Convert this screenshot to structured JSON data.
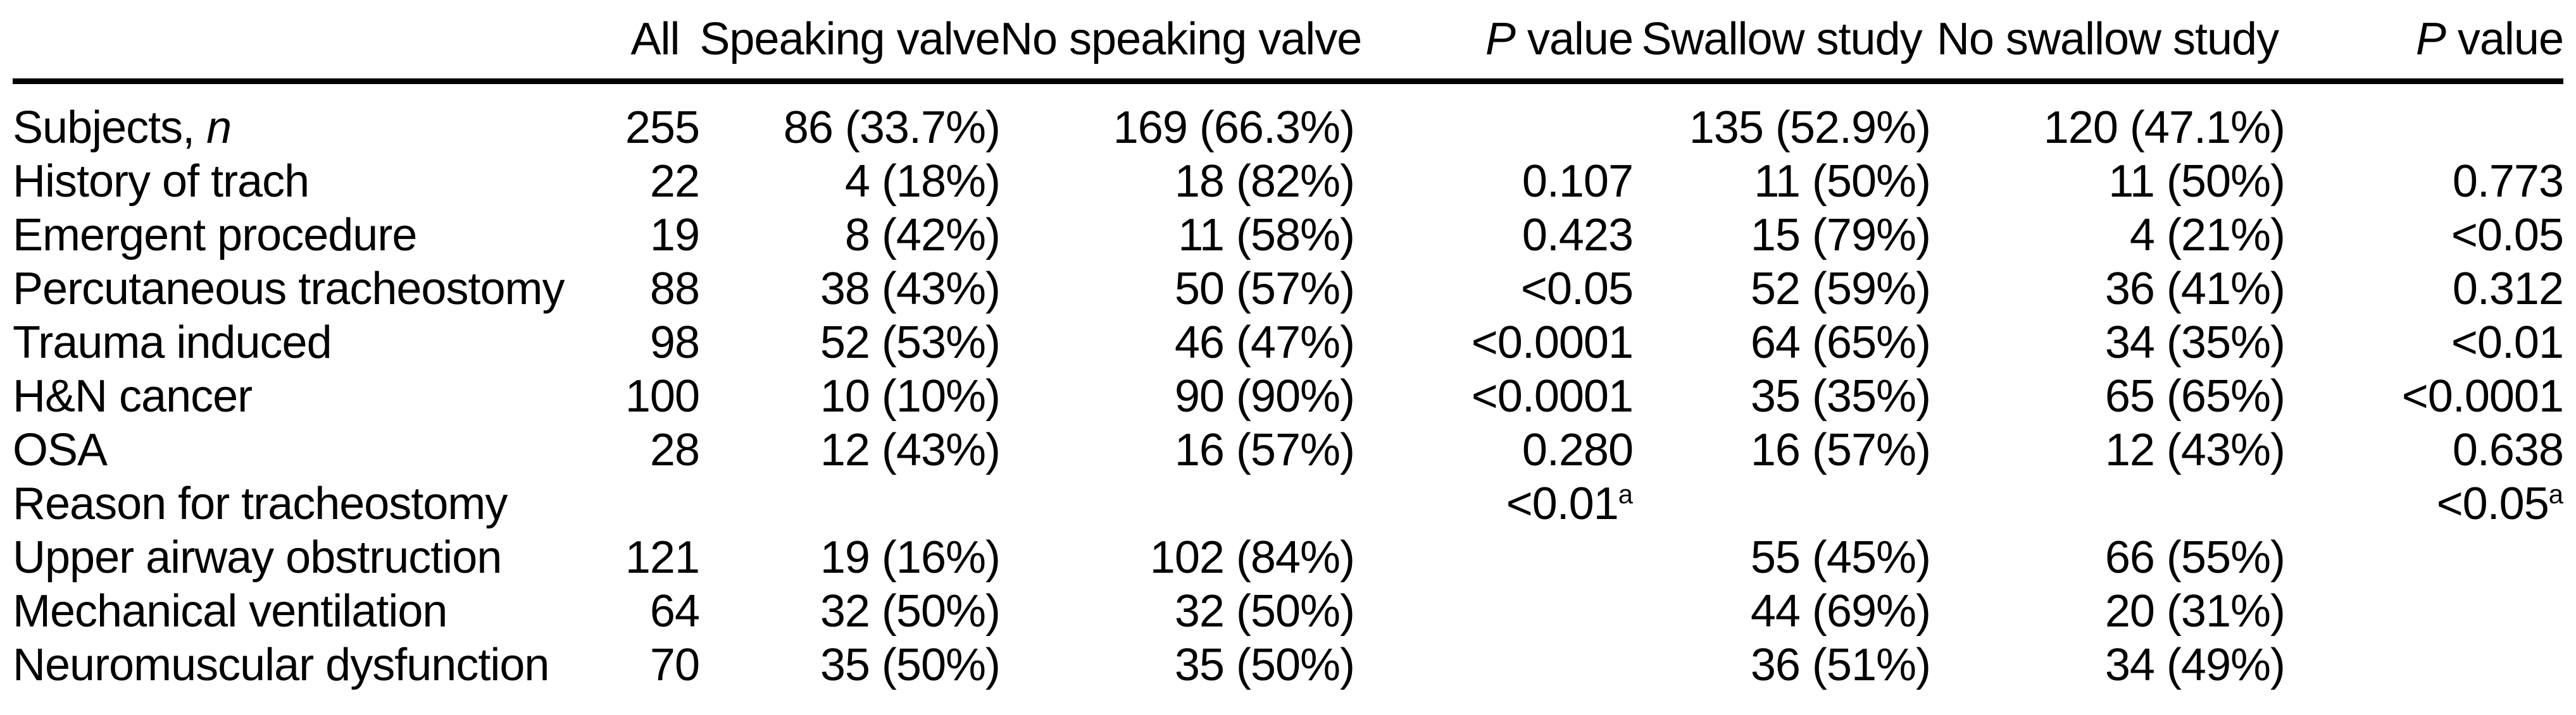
{
  "colors": {
    "text": "#000000",
    "background": "#ffffff",
    "rule": "#000000"
  },
  "table": {
    "columns": [
      {
        "key": "row_label",
        "header": {
          "text": ""
        }
      },
      {
        "key": "all",
        "header": {
          "text": "All"
        }
      },
      {
        "key": "speaking_valve",
        "header": {
          "text": "Speaking valve"
        }
      },
      {
        "key": "no_speaking_valve",
        "header": {
          "text": "No speaking valve"
        }
      },
      {
        "key": "p_value_speaking",
        "header": {
          "italic_prefix": "P",
          "text": "value"
        }
      },
      {
        "key": "swallow_study",
        "header": {
          "text": "Swallow study"
        }
      },
      {
        "key": "no_swallow_study",
        "header": {
          "text": "No swallow study"
        }
      },
      {
        "key": "p_value_swallow",
        "header": {
          "italic_prefix": "P",
          "text": "value"
        }
      }
    ],
    "rows": [
      {
        "indent": false,
        "cells": [
          {
            "text": "Subjects, ",
            "italic_suffix": "n"
          },
          "255",
          "86 (33.7%)",
          "169 (66.3%)",
          "",
          "135 (52.9%)",
          "120 (47.1%)",
          ""
        ]
      },
      {
        "indent": false,
        "cells": [
          "History of trach",
          "22",
          "4 (18%)",
          "18 (82%)",
          "0.107",
          "11 (50%)",
          "11 (50%)",
          "0.773"
        ]
      },
      {
        "indent": false,
        "cells": [
          "Emergent procedure",
          "19",
          "8 (42%)",
          "11 (58%)",
          "0.423",
          "15 (79%)",
          "4 (21%)",
          {
            "text": "<0.05",
            "bold": true
          }
        ]
      },
      {
        "indent": false,
        "cells": [
          "Percutaneous tracheostomy",
          "88",
          "38 (43%)",
          "50 (57%)",
          {
            "text": "<0.05",
            "bold": true
          },
          "52 (59%)",
          "36 (41%)",
          "0.312"
        ]
      },
      {
        "indent": false,
        "cells": [
          "Trauma induced",
          "98",
          "52 (53%)",
          "46 (47%)",
          {
            "text": "<0.0001",
            "bold": true
          },
          "64 (65%)",
          "34 (35%)",
          {
            "text": "<0.01",
            "bold": true
          }
        ]
      },
      {
        "indent": false,
        "cells": [
          "H&N cancer",
          "100",
          "10 (10%)",
          "90 (90%)",
          {
            "text": "<0.0001",
            "bold": true
          },
          "35 (35%)",
          "65 (65%)",
          {
            "text": "<0.0001",
            "bold": true
          }
        ]
      },
      {
        "indent": false,
        "cells": [
          "OSA",
          "28",
          "12 (43%)",
          "16 (57%)",
          "0.280",
          "16 (57%)",
          "12 (43%)",
          "0.638"
        ]
      },
      {
        "indent": false,
        "cells": [
          "Reason for tracheostomy",
          "",
          "",
          "",
          {
            "text": "<0.01",
            "bold": true,
            "sup": "a"
          },
          "",
          "",
          {
            "text": "<0.05",
            "bold": true,
            "sup": "a"
          }
        ]
      },
      {
        "indent": true,
        "cells": [
          "Upper airway obstruction",
          "121",
          "19 (16%)",
          "102 (84%)",
          "",
          "55 (45%)",
          "66 (55%)",
          ""
        ]
      },
      {
        "indent": true,
        "cells": [
          "Mechanical ventilation",
          "64",
          "32 (50%)",
          "32 (50%)",
          "",
          "44 (69%)",
          "20 (31%)",
          ""
        ]
      },
      {
        "indent": true,
        "cells": [
          "Neuromuscular dysfunction",
          "70",
          "35 (50%)",
          "35 (50%)",
          "",
          "36 (51%)",
          "34 (49%)",
          ""
        ]
      }
    ]
  }
}
